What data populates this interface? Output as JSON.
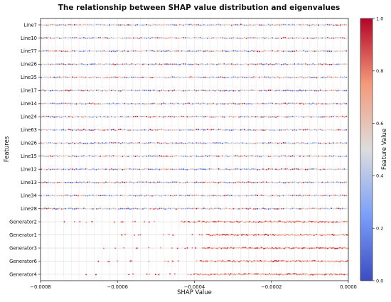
{
  "chart_data": {
    "type": "scatter",
    "subtype": "shap-beeswarm",
    "title": "The relationship between SHAP value distribution and eigenvalues",
    "xlabel": "SHAP Value",
    "ylabel": "Features",
    "xlim": [
      -0.0008,
      0.0
    ],
    "x_ticks": [
      -0.0008,
      -0.0006,
      -0.0004,
      -0.0002,
      0.0
    ],
    "x_tick_labels": [
      "−0.0008",
      "−0.0006",
      "−0.0004",
      "−0.0002",
      "0.0000"
    ],
    "features": [
      {
        "name": "Line7",
        "min_shap": -0.0008,
        "max_shap": 0.0
      },
      {
        "name": "Line10",
        "min_shap": -0.0008,
        "max_shap": 0.0
      },
      {
        "name": "Line77",
        "min_shap": -0.0008,
        "max_shap": 0.0
      },
      {
        "name": "Line26",
        "min_shap": -0.0008,
        "max_shap": 0.0
      },
      {
        "name": "Line35",
        "min_shap": -0.0008,
        "max_shap": 0.0
      },
      {
        "name": "Line17",
        "min_shap": -0.0008,
        "max_shap": 0.0
      },
      {
        "name": "Line14",
        "min_shap": -0.0008,
        "max_shap": 0.0
      },
      {
        "name": "Line24",
        "min_shap": -0.0008,
        "max_shap": 0.0
      },
      {
        "name": "Line63",
        "min_shap": -0.0008,
        "max_shap": 0.0
      },
      {
        "name": "Line26",
        "min_shap": -0.0008,
        "max_shap": 0.0
      },
      {
        "name": "Line15",
        "min_shap": -0.0008,
        "max_shap": 0.0
      },
      {
        "name": "Line12",
        "min_shap": -0.0008,
        "max_shap": 0.0
      },
      {
        "name": "Line13",
        "min_shap": -0.0008,
        "max_shap": 0.0
      },
      {
        "name": "Line34",
        "min_shap": -0.0008,
        "max_shap": 0.0
      },
      {
        "name": "Line28",
        "min_shap": -0.0008,
        "max_shap": 0.0
      },
      {
        "name": "Generator2",
        "min_shap": -0.00075,
        "max_shap": 0.0
      },
      {
        "name": "Generator1",
        "min_shap": -0.00063,
        "max_shap": 0.0
      },
      {
        "name": "Generator3",
        "min_shap": -0.00065,
        "max_shap": 0.0
      },
      {
        "name": "Generator6",
        "min_shap": -0.00066,
        "max_shap": 0.0
      },
      {
        "name": "Generator4",
        "min_shap": -0.00069,
        "max_shap": 0.0
      }
    ],
    "colorbar": {
      "label": "Feature Value",
      "range": [
        0.0,
        1.0
      ],
      "ticks": [
        0.0,
        0.2,
        0.4,
        0.6,
        0.8,
        1.0
      ],
      "tick_labels": [
        "0.0",
        "0.2",
        "0.4",
        "0.6",
        "0.8",
        "1.0"
      ],
      "colormap": "coolwarm",
      "low_color": "#3b4cc0",
      "mid_color": "#dddddd",
      "high_color": "#b40426"
    },
    "grid": true,
    "legend": "none"
  }
}
